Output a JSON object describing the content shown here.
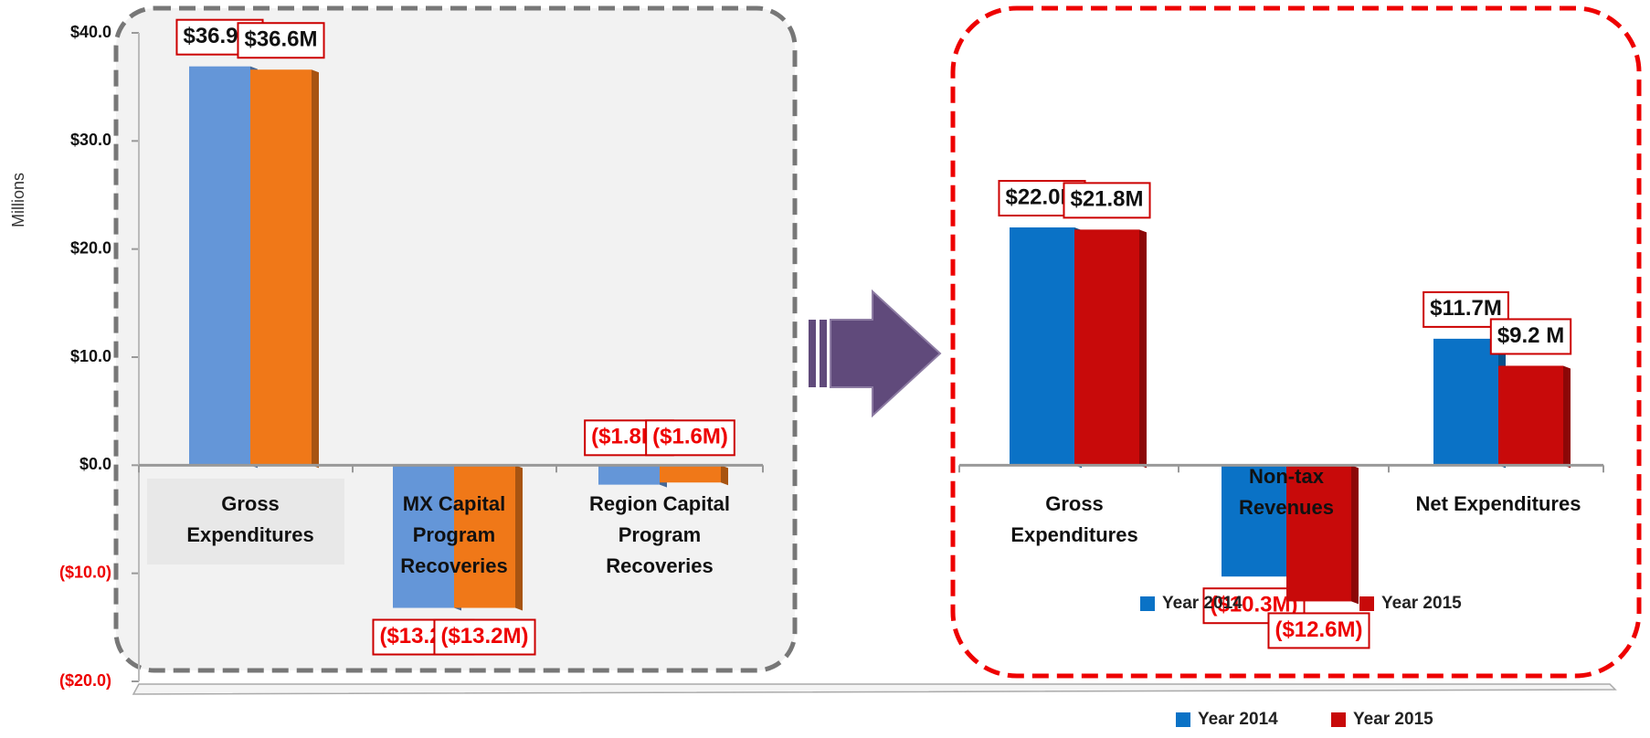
{
  "chart_data": [
    {
      "type": "bar",
      "y_label": "Millions",
      "categories": [
        "Gross Expenditures",
        "MX Capital Program Recoveries",
        "Region Capital Program Recoveries"
      ],
      "series": [
        {
          "name": "Year 2014",
          "color": "#6496d8",
          "values": [
            36.9,
            -13.2,
            -1.8
          ],
          "value_labels": [
            "$36.9M",
            "($13.2M)",
            "($1.8M)"
          ]
        },
        {
          "name": "Year 2015",
          "color": "#f07818",
          "values": [
            36.6,
            -13.2,
            -1.6
          ],
          "value_labels": [
            "$36.6M",
            "($13.2M)",
            "($1.6M)"
          ]
        }
      ],
      "ylim": [
        -20,
        40
      ],
      "yticks": [
        {
          "value": -20,
          "label": "($20.0)"
        },
        {
          "value": -10,
          "label": "($10.0)"
        },
        {
          "value": 0,
          "label": "$0.0"
        },
        {
          "value": 10,
          "label": "$10.0"
        },
        {
          "value": 20,
          "label": "$20.0"
        },
        {
          "value": 30,
          "label": "$30.0"
        },
        {
          "value": 40,
          "label": "$40.0"
        }
      ]
    },
    {
      "type": "bar",
      "categories": [
        "Gross Expenditures",
        "Non-tax Revenues",
        "Net Expenditures"
      ],
      "series": [
        {
          "name": "Year 2014",
          "color": "#0a72c6",
          "values": [
            22.0,
            -10.3,
            11.7
          ],
          "value_labels": [
            "$22.0M",
            "($10.3M)",
            "$11.7M"
          ]
        },
        {
          "name": "Year 2015",
          "color": "#c80a0a",
          "values": [
            21.8,
            -12.6,
            9.2
          ],
          "value_labels": [
            "$21.8M",
            "($12.6M)",
            "$9.2 M"
          ]
        }
      ],
      "ylim": [
        -20,
        40
      ]
    }
  ]
}
